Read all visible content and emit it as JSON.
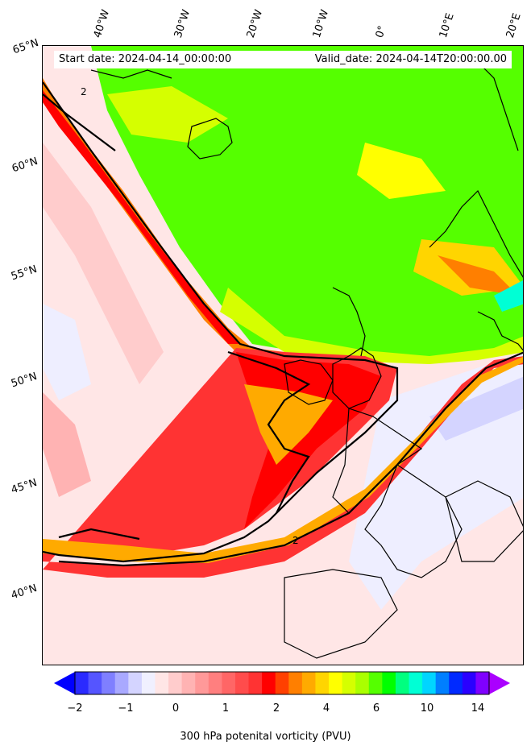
{
  "header": {
    "start_text": "Start date: 2024-04-14_00:00:00",
    "valid_text": "Valid_date: 2024-04-14T20:00:00.00"
  },
  "longitude_labels": [
    "40°W",
    "30°W",
    "20°W",
    "10°W",
    "0°",
    "10°E",
    "20°E"
  ],
  "latitude_labels": [
    "65°N",
    "60°N",
    "55°N",
    "50°N",
    "45°N",
    "40°N"
  ],
  "contour_labels": [
    "2",
    "2"
  ],
  "colorbar": {
    "label": "300 hPa potenital vorticity (PVU)",
    "tick_labels": [
      "−2",
      "−1",
      "0",
      "1",
      "2",
      "4",
      "6",
      "10",
      "14"
    ],
    "colors": [
      "#0000ff",
      "#2a2aff",
      "#5555ff",
      "#7f7fff",
      "#a9a9ff",
      "#d4d4ff",
      "#f0f0ff",
      "#ffe6e6",
      "#ffcccc",
      "#ffb3b3",
      "#ff9999",
      "#ff7f7f",
      "#ff6666",
      "#ff4c4c",
      "#ff3333",
      "#ff0000",
      "#ff4000",
      "#ff7f00",
      "#ffaa00",
      "#ffd500",
      "#ffff00",
      "#d5ff00",
      "#aaff00",
      "#55ff00",
      "#00ff00",
      "#00ff7f",
      "#00ffd5",
      "#00d5ff",
      "#007fff",
      "#002aff",
      "#2a00ff",
      "#7f00ff",
      "#aa00ff"
    ]
  },
  "colors": {
    "land_outline": "#000000",
    "pv2_contour": "#000000",
    "ocean_neutral": "#ffe6e6",
    "low_pv": "#55ff00",
    "high_pv": "#ff0000"
  }
}
